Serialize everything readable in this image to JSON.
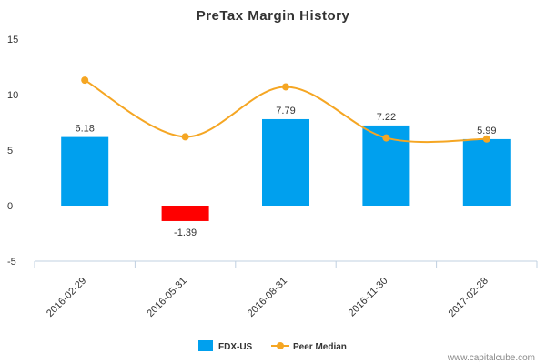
{
  "chart_data": {
    "type": "bar",
    "title": "PreTax Margin History",
    "categories": [
      "2016-02-29",
      "2016-05-31",
      "2016-08-31",
      "2016-11-30",
      "2017-02-28"
    ],
    "series": [
      {
        "name": "FDX-US",
        "type": "bar",
        "values": [
          6.18,
          -1.39,
          7.79,
          7.22,
          5.99
        ],
        "data_labels": [
          "6.18",
          "-1.39",
          "7.79",
          "7.22",
          "5.99"
        ],
        "color": "#00a0ee",
        "negative_color": "#ff0000"
      },
      {
        "name": "Peer Median",
        "type": "line",
        "values": [
          11.3,
          6.2,
          10.7,
          6.1,
          6.0
        ],
        "color": "#f5a623"
      }
    ],
    "ylim": [
      -5,
      15
    ],
    "yticks": [
      "15",
      "10",
      "5",
      "0",
      "-5"
    ],
    "xlabel": "",
    "ylabel": "",
    "grid": false,
    "legend": "bottom-center"
  },
  "watermark": "www.capitalcube.com"
}
